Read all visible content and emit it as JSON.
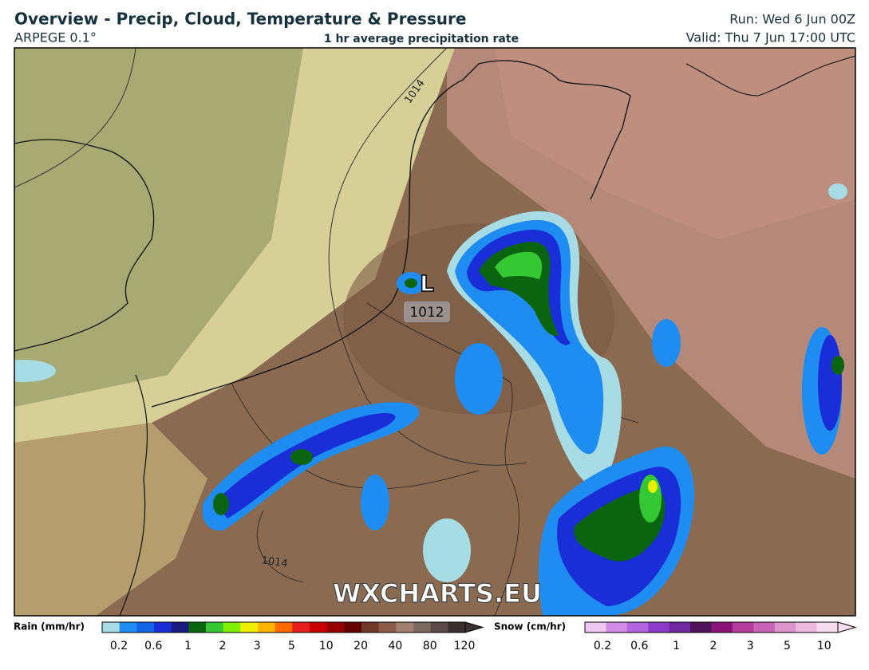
{
  "header": {
    "title": "Overview - Precip, Cloud, Temperature & Pressure",
    "model": "ARPEGE 0.1°",
    "subtitle": "1 hr average precipitation rate",
    "run": "Run: Wed 6 Jun 00Z",
    "valid": "Valid: Thu 7 Jun 17:00 UTC"
  },
  "map": {
    "low_label": "L",
    "low_pressure": "1012",
    "isobar_labels": [
      "1014",
      "1014"
    ],
    "watermark": "WXCHARTS.EU"
  },
  "legend": {
    "rain": {
      "label": "Rain (mm/hr)",
      "ticks": [
        "0.2",
        "0.6",
        "1",
        "2",
        "3",
        "5",
        "10",
        "20",
        "40",
        "80",
        "120"
      ]
    },
    "snow": {
      "label": "Snow (cm/hr)",
      "ticks": [
        "0.2",
        "0.6",
        "1",
        "2",
        "3",
        "5",
        "10"
      ]
    }
  }
}
